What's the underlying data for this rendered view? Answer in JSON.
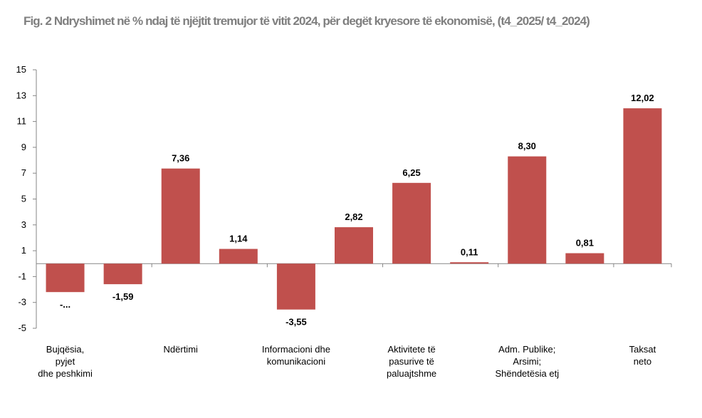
{
  "chart_data": {
    "type": "bar",
    "title": "Fig. 2  Ndryshimet në % ndaj të njëjtit tremujor të vitit 2024, për degët kryesore të ekonomisë, (t4_2025/ t4_2024)",
    "categories": [
      "Bujqësia, pyjet dhe peshkimi",
      "",
      "Ndërtimi",
      "",
      "Informacioni dhe komunikacioni",
      "",
      "Aktivitete të pasurive të paluajtshme",
      "",
      "Adm. Publike; Arsimi; Shëndetësia etj",
      "",
      "Taksat neto"
    ],
    "category_label_lines": [
      [
        "Bujqësia,",
        "pyjet",
        "dhe peshkimi"
      ],
      [],
      [
        "Ndërtimi"
      ],
      [],
      [
        "Informacioni dhe",
        "komunikacioni"
      ],
      [],
      [
        "Aktivitete të",
        "pasurive të",
        "paluajtshme"
      ],
      [],
      [
        "Adm. Publike;",
        "Arsimi;",
        "Shëndetësia etj"
      ],
      [],
      [
        "Taksat",
        "neto"
      ]
    ],
    "values": [
      -2.2,
      -1.59,
      7.36,
      1.14,
      -3.55,
      2.82,
      6.25,
      0.11,
      8.3,
      0.81,
      12.02
    ],
    "data_labels": [
      "-...",
      "-1,59",
      "7,36",
      "1,14",
      "-3,55",
      "2,82",
      "6,25",
      "0,11",
      "8,30",
      "0,81",
      "12,02"
    ],
    "xlabel": "",
    "ylabel": "",
    "ylim": [
      -5,
      15
    ],
    "yticks": [
      15,
      13,
      11,
      9,
      7,
      5,
      3,
      1,
      -1,
      -3,
      -5
    ],
    "grid": false,
    "legend": "none",
    "bar_color": "#c0504d"
  }
}
